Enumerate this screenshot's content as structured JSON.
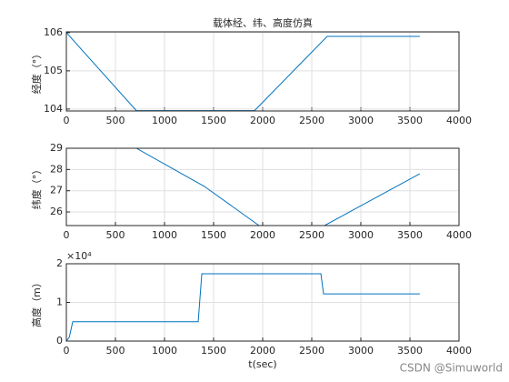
{
  "chart_data": [
    {
      "type": "line",
      "title": "载体经、纬、高度仿真",
      "ylabel": "经度（°）",
      "color": "#0072bd",
      "x": [
        0,
        713,
        1917,
        2657,
        3600
      ],
      "values": [
        106,
        103.96,
        103.96,
        105.9,
        105.9
      ],
      "xlim": [
        0,
        4000
      ],
      "xticks": [
        0,
        500,
        1000,
        1500,
        2000,
        2500,
        3000,
        3500,
        4000
      ],
      "ylim": [
        103.95,
        106.02
      ],
      "yticks": [
        104,
        105,
        106
      ],
      "grid": true
    },
    {
      "type": "line",
      "ylabel": "纬度（°）",
      "color": "#0072bd",
      "x": [
        0,
        713,
        1407,
        1963,
        2630,
        3600
      ],
      "values": [
        29,
        29,
        27.2,
        25.36,
        25.36,
        27.8
      ],
      "xlim": [
        0,
        4000
      ],
      "xticks": [
        0,
        500,
        1000,
        1500,
        2000,
        2500,
        3000,
        3500,
        4000
      ],
      "ylim": [
        25.36,
        29
      ],
      "yticks": [
        26,
        27,
        28,
        29
      ],
      "grid": true
    },
    {
      "type": "line",
      "ylabel": "高度（m）",
      "xlabel": "t(sec)",
      "exponent_label": "×10⁴",
      "color": "#0072bd",
      "x": [
        0,
        30,
        65,
        1343,
        1380,
        2593,
        2620,
        3600
      ],
      "values": [
        0,
        0.1,
        0.5,
        0.5,
        1.74,
        1.74,
        1.22,
        1.22
      ],
      "xlim": [
        0,
        4000
      ],
      "xticks": [
        0,
        500,
        1000,
        1500,
        2000,
        2500,
        3000,
        3500,
        4000
      ],
      "ylim": [
        0,
        2
      ],
      "yticks": [
        0,
        1,
        2
      ],
      "grid": true
    }
  ],
  "watermark": "CSDN @Simuworld"
}
